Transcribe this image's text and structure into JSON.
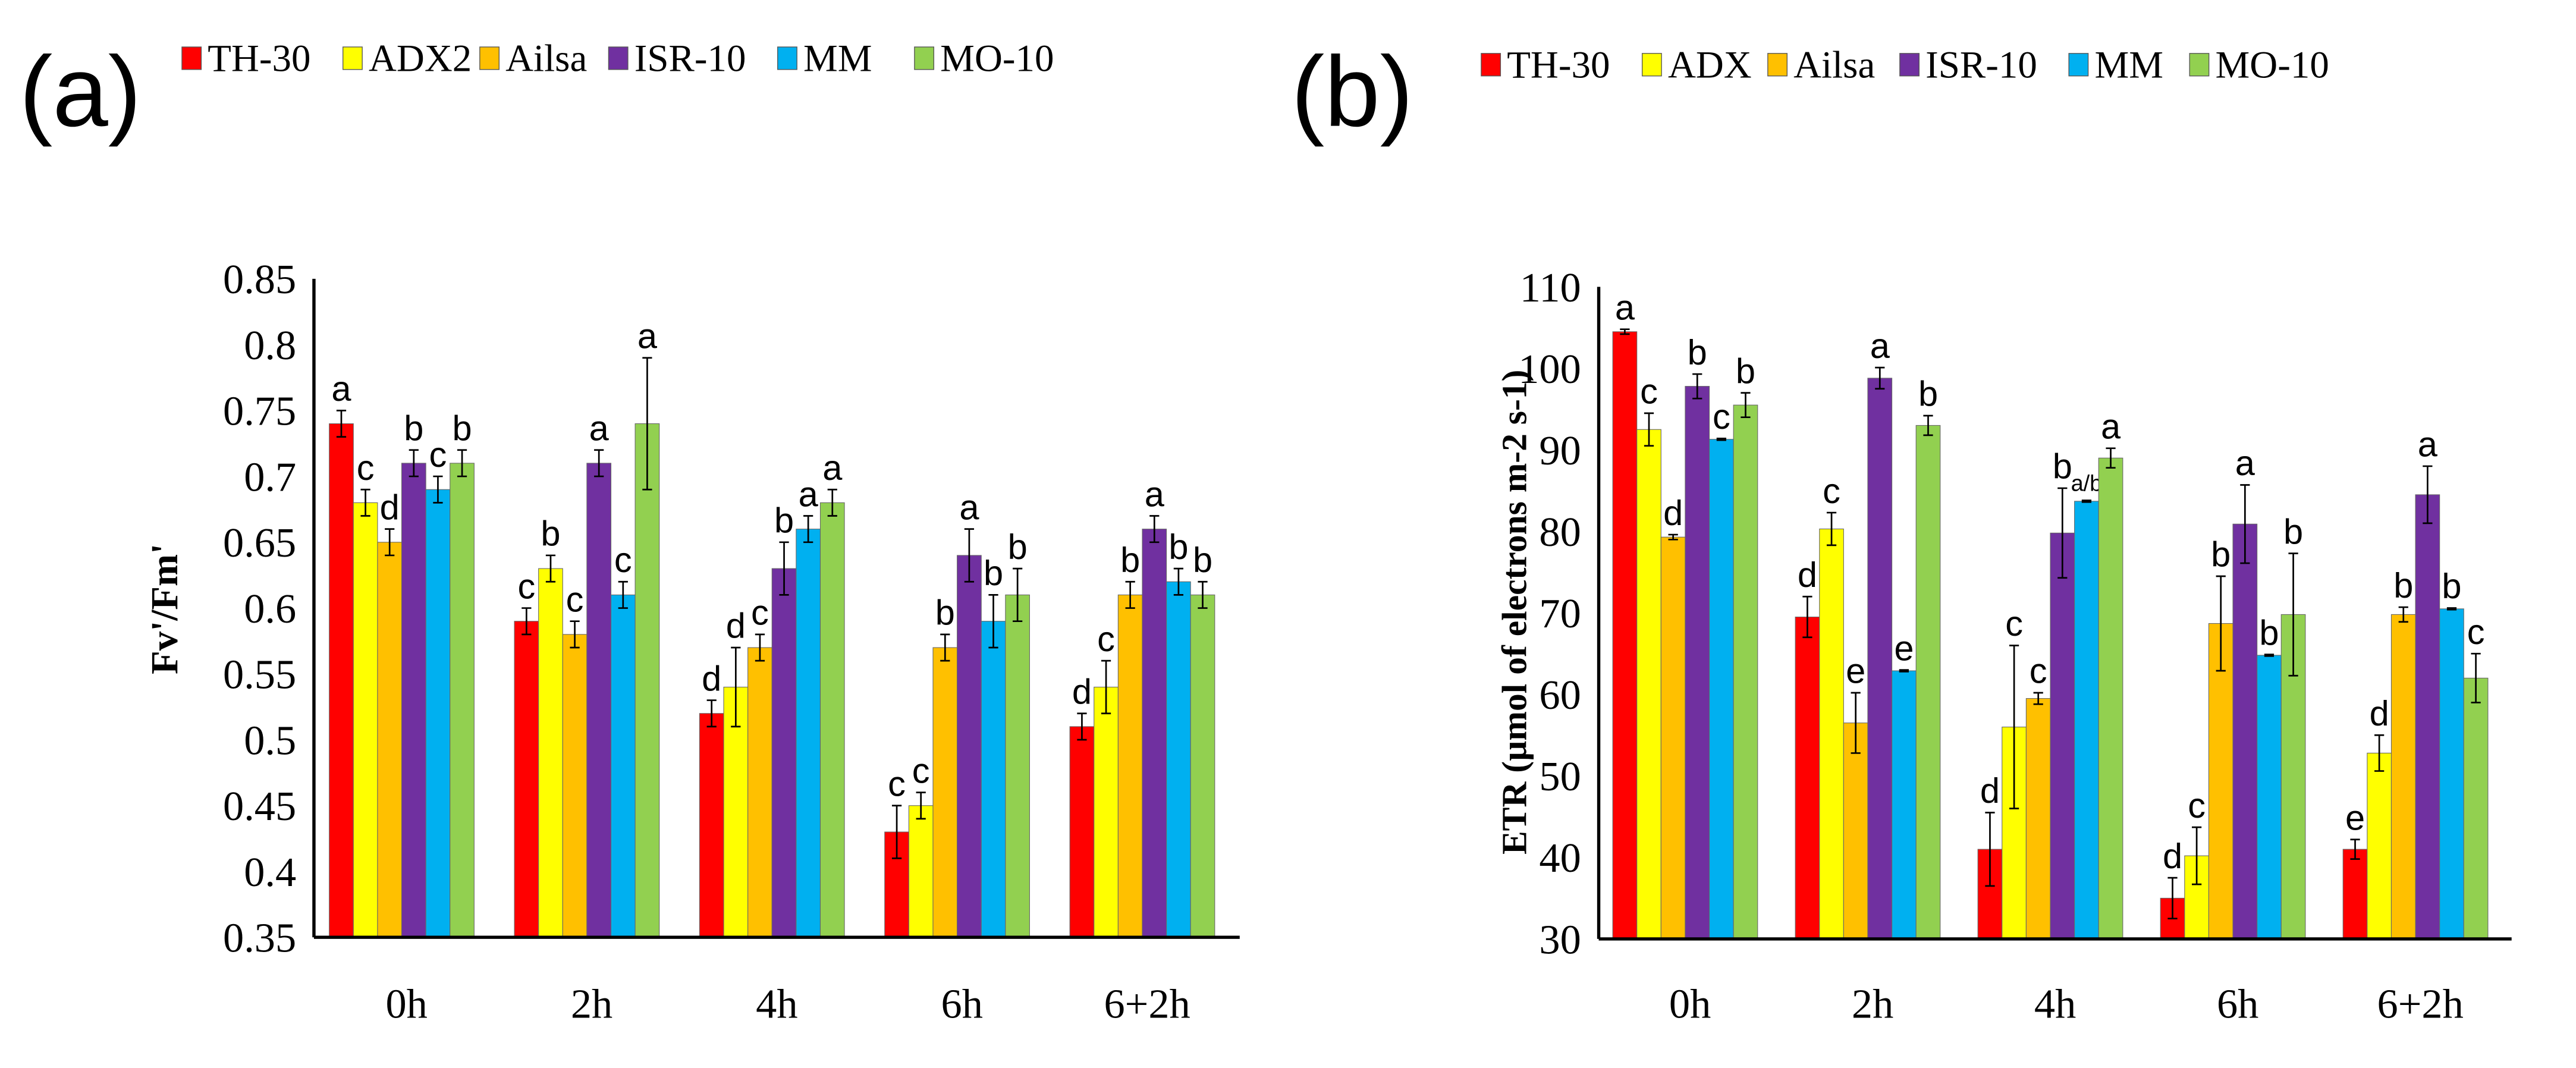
{
  "chart_data": [
    {
      "type": "bar",
      "panel_label": "(a)",
      "title": "",
      "xlabel": "",
      "ylabel": "Fv'/Fm'",
      "ylim": [
        0.35,
        0.85
      ],
      "yticks": [
        "0.35",
        "0.4",
        "0.45",
        "0.5",
        "0.55",
        "0.6",
        "0.65",
        "0.7",
        "0.75",
        "0.8",
        "0.85"
      ],
      "categories": [
        "0h",
        "2h",
        "4h",
        "6h",
        "6+2h"
      ],
      "legend_position": "top",
      "series": [
        {
          "name": "TH-30",
          "color": "#ff0000",
          "values": [
            0.74,
            0.59,
            0.52,
            0.43,
            0.51
          ],
          "errors": [
            0.01,
            0.01,
            0.01,
            0.02,
            0.01
          ],
          "letters": [
            "a",
            "c",
            "d",
            "c",
            "d"
          ]
        },
        {
          "name": "ADX2",
          "color": "#ffff00",
          "values": [
            0.68,
            0.63,
            0.54,
            0.45,
            0.54
          ],
          "errors": [
            0.01,
            0.01,
            0.03,
            0.01,
            0.02
          ],
          "letters": [
            "c",
            "b",
            "d",
            "c",
            "c"
          ]
        },
        {
          "name": "Ailsa",
          "color": "#ffc000",
          "values": [
            0.65,
            0.58,
            0.57,
            0.57,
            0.61
          ],
          "errors": [
            0.01,
            0.01,
            0.01,
            0.01,
            0.01
          ],
          "letters": [
            "d",
            "c",
            "c",
            "b",
            "b"
          ]
        },
        {
          "name": "ISR-10",
          "color": "#7030a0",
          "values": [
            0.71,
            0.71,
            0.63,
            0.64,
            0.66
          ],
          "errors": [
            0.01,
            0.01,
            0.02,
            0.02,
            0.01
          ],
          "letters": [
            "b",
            "a",
            "b",
            "a",
            "a"
          ]
        },
        {
          "name": "MM",
          "color": "#00b0f0",
          "values": [
            0.69,
            0.61,
            0.66,
            0.59,
            0.62
          ],
          "errors": [
            0.01,
            0.01,
            0.01,
            0.02,
            0.01
          ],
          "letters": [
            "c",
            "c",
            "a",
            "b",
            "b"
          ]
        },
        {
          "name": "MO-10",
          "color": "#92d050",
          "values": [
            0.71,
            0.74,
            0.68,
            0.61,
            0.61
          ],
          "errors": [
            0.01,
            0.05,
            0.01,
            0.02,
            0.01
          ],
          "letters": [
            "b",
            "a",
            "a",
            "b",
            "b"
          ]
        }
      ]
    },
    {
      "type": "bar",
      "panel_label": "(b)",
      "title": "",
      "xlabel": "",
      "ylabel": "ETR (µmol of electrons m-2 s-1)",
      "ylim": [
        30,
        110
      ],
      "yticks": [
        "30",
        "40",
        "50",
        "60",
        "70",
        "80",
        "90",
        "100",
        "110"
      ],
      "categories": [
        "0h",
        "2h",
        "4h",
        "6h",
        "6+2h"
      ],
      "legend_position": "top",
      "series": [
        {
          "name": "TH-30",
          "color": "#ff0000",
          "values": [
            104.5,
            69.5,
            41,
            35,
            41
          ],
          "errors": [
            0.3,
            2.5,
            4.5,
            2.5,
            1.2
          ],
          "letters": [
            "a",
            "d",
            "d",
            "d",
            "e"
          ]
        },
        {
          "name": "ADX",
          "color": "#ffff00",
          "values": [
            92.5,
            80.3,
            56,
            40.2,
            52.8
          ],
          "errors": [
            2,
            2,
            10,
            3.5,
            2.2
          ],
          "letters": [
            "c",
            "c",
            "c",
            "c",
            "d"
          ]
        },
        {
          "name": "Ailsa",
          "color": "#ffc000",
          "values": [
            79.3,
            56.5,
            59.5,
            68.7,
            69.8
          ],
          "errors": [
            0.3,
            3.7,
            0.7,
            5.8,
            0.9
          ],
          "letters": [
            "d",
            "e",
            "c",
            "b",
            "b"
          ]
        },
        {
          "name": "ISR-10",
          "color": "#7030a0",
          "values": [
            97.8,
            98.8,
            79.8,
            80.9,
            84.5
          ],
          "errors": [
            1.5,
            1.3,
            5.5,
            4.8,
            3.5
          ],
          "letters": [
            "b",
            "a",
            "b",
            "a",
            "a"
          ]
        },
        {
          "name": "MM",
          "color": "#00b0f0",
          "values": [
            91.3,
            62.9,
            83.7,
            64.8,
            70.5
          ],
          "errors": [
            0.1,
            0.1,
            0.1,
            0.1,
            0.1
          ],
          "letters": [
            "c",
            "e",
            "a/b",
            "b",
            "b"
          ]
        },
        {
          "name": "MO-10",
          "color": "#92d050",
          "values": [
            95.5,
            93,
            89,
            69.8,
            62
          ],
          "errors": [
            1.5,
            1.2,
            1.2,
            7.5,
            3
          ],
          "letters": [
            "b",
            "b",
            "a",
            "b",
            "c"
          ]
        }
      ]
    }
  ]
}
